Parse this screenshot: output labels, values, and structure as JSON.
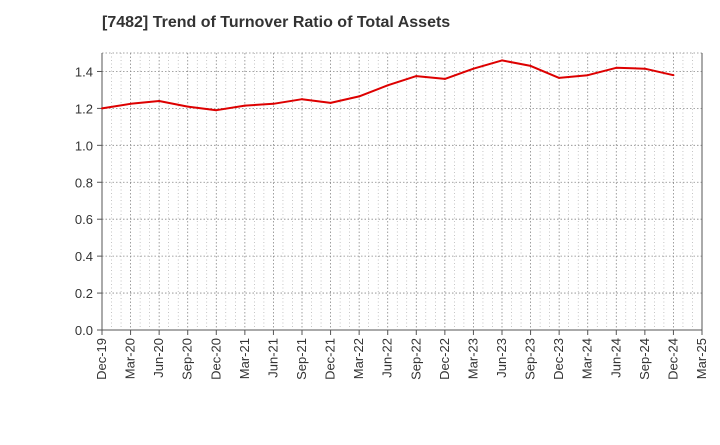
{
  "chart_data": {
    "type": "line",
    "title": "[7482]  Trend of Turnover Ratio of Total Assets",
    "xlabel": "",
    "ylabel": "",
    "x_ticks": [
      "Dec-19",
      "Mar-20",
      "Jun-20",
      "Sep-20",
      "Dec-20",
      "Mar-21",
      "Jun-21",
      "Sep-21",
      "Dec-21",
      "Mar-22",
      "Jun-22",
      "Sep-22",
      "Dec-22",
      "Mar-23",
      "Jun-23",
      "Sep-23",
      "Dec-23",
      "Mar-24",
      "Jun-24",
      "Sep-24",
      "Dec-24",
      "Mar-25"
    ],
    "y_ticks": [
      "0.0",
      "0.2",
      "0.4",
      "0.6",
      "0.8",
      "1.0",
      "1.2",
      "1.4"
    ],
    "ylim": [
      0,
      1.5
    ],
    "grid": true,
    "legend": "none",
    "colors": {
      "line": "#dd0000",
      "grid": "#888888",
      "axis": "#555555"
    },
    "series": [
      {
        "name": "",
        "x": [
          "Dec-19",
          "Mar-20",
          "Jun-20",
          "Sep-20",
          "Dec-20",
          "Mar-21",
          "Jun-21",
          "Sep-21",
          "Dec-21",
          "Mar-22",
          "Jun-22",
          "Sep-22",
          "Dec-22",
          "Mar-23",
          "Jun-23",
          "Sep-23",
          "Dec-23",
          "Mar-24",
          "Jun-24",
          "Sep-24",
          "Dec-24"
        ],
        "values": [
          1.2,
          1.225,
          1.24,
          1.21,
          1.19,
          1.215,
          1.225,
          1.25,
          1.23,
          1.265,
          1.325,
          1.375,
          1.36,
          1.415,
          1.46,
          1.43,
          1.365,
          1.38,
          1.42,
          1.415,
          1.38
        ]
      }
    ]
  }
}
